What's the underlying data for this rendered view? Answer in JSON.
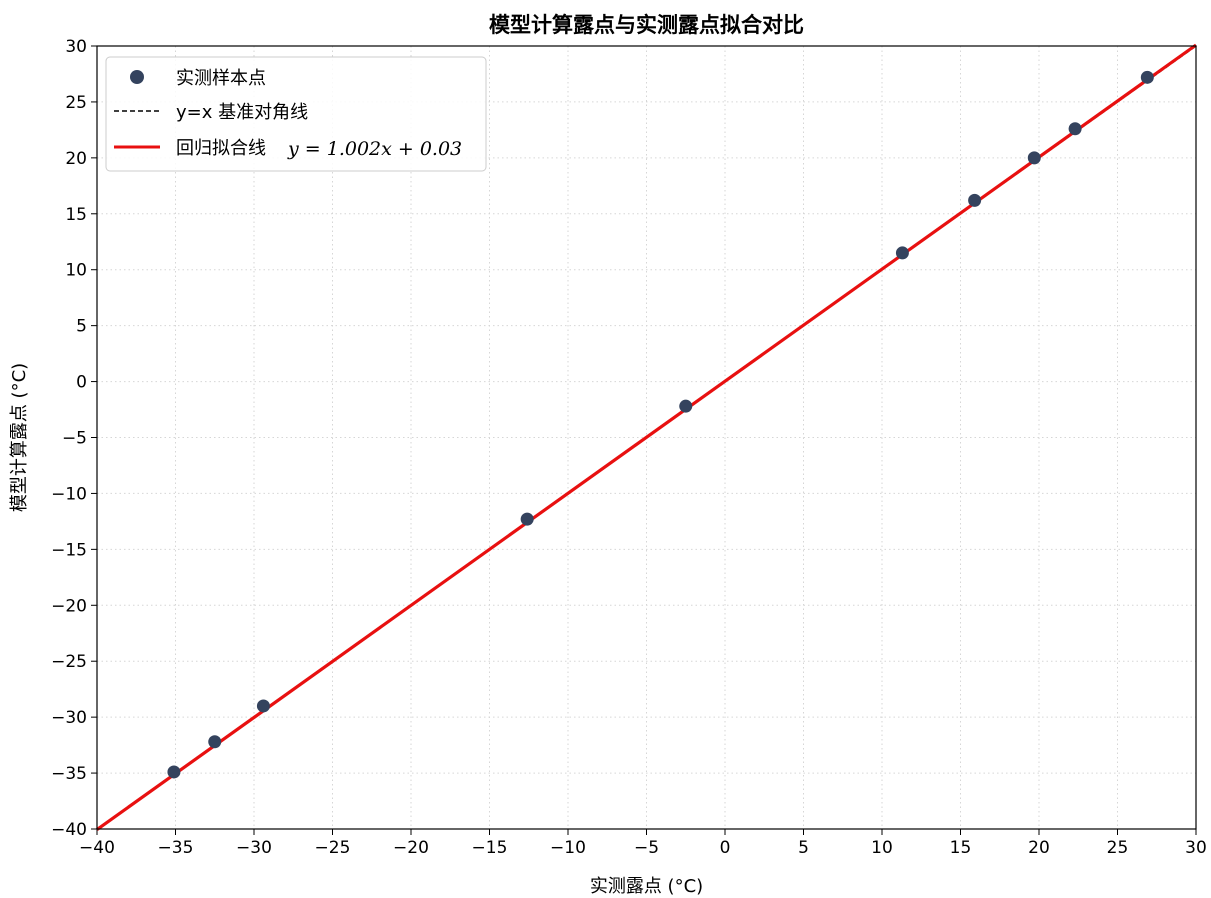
{
  "chart_data": {
    "type": "scatter",
    "title": "模型计算露点与实测露点拟合对比",
    "xlabel": "实测露点 (°C)",
    "ylabel": "模型计算露点 (°C)",
    "xlim": [
      -40,
      30
    ],
    "ylim": [
      -40,
      30
    ],
    "xticks": [
      -40,
      -35,
      -30,
      -25,
      -20,
      -15,
      -10,
      -5,
      0,
      5,
      10,
      15,
      20,
      25,
      30
    ],
    "yticks": [
      -40,
      -35,
      -30,
      -25,
      -20,
      -15,
      -10,
      -5,
      0,
      5,
      10,
      15,
      20,
      25,
      30
    ],
    "grid": true,
    "legend_position": "top-left",
    "series": [
      {
        "name": "实测样本点",
        "kind": "scatter",
        "color": "#34435e",
        "x": [
          -35.1,
          -32.5,
          -29.4,
          -12.6,
          -2.5,
          11.3,
          15.9,
          19.7,
          22.3,
          26.9
        ],
        "y": [
          -34.9,
          -32.2,
          -29.0,
          -12.3,
          -2.2,
          11.5,
          16.2,
          20.0,
          22.6,
          27.2
        ]
      },
      {
        "name": "y=x 基准对角线",
        "kind": "line",
        "style": "dashed",
        "color": "#000000",
        "x": [
          -40,
          30
        ],
        "y": [
          -40,
          30
        ]
      },
      {
        "name": "回归拟合线",
        "kind": "line",
        "color": "#e81010",
        "slope": 1.002,
        "intercept": 0.03,
        "x": [
          -40,
          30
        ],
        "y": [
          -40.05,
          30.09
        ]
      }
    ],
    "legend": {
      "scatter_label": "实测样本点",
      "diagonal_label": "y=x 基准对角线",
      "fit_label_text": "回归拟合线",
      "fit_label_math": "y = 1.002x + 0.03"
    }
  }
}
